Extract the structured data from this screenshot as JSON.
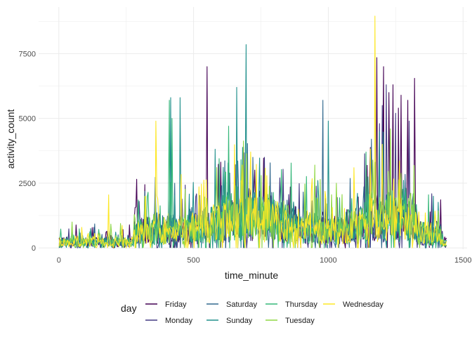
{
  "chart_data": {
    "type": "line",
    "title": "",
    "xlabel": "time_minute",
    "ylabel": "activity_count",
    "xlim": [
      -75,
      1515
    ],
    "ylim": [
      -50,
      9300
    ],
    "x_ticks": [
      0,
      500,
      1000,
      1500
    ],
    "x_tick_labels": [
      "0",
      "500",
      "1000",
      "1500"
    ],
    "y_ticks": [
      0,
      2500,
      5000,
      7500
    ],
    "y_tick_labels": [
      "0",
      "2500",
      "5000",
      "7500"
    ],
    "grid": true,
    "legend_title": "day",
    "legend_placement": "bottom",
    "x_range": [
      1,
      1440
    ],
    "series": [
      {
        "name": "Friday",
        "color": "#440154",
        "peaks": [
          [
            550,
            7000
          ],
          [
            1180,
            7350
          ],
          [
            1205,
            7000
          ],
          [
            1240,
            6300
          ],
          [
            1260,
            5400
          ],
          [
            1270,
            5900
          ],
          [
            1295,
            5700
          ],
          [
            1320,
            6550
          ],
          [
            1225,
            6000
          ]
        ]
      },
      {
        "name": "Monday",
        "color": "#443A83",
        "peaks": [
          [
            1200,
            5500
          ],
          [
            1215,
            6300
          ],
          [
            1250,
            5200
          ],
          [
            1300,
            4900
          ],
          [
            1190,
            4800
          ]
        ]
      },
      {
        "name": "Saturday",
        "color": "#31688E",
        "peaks": [
          [
            980,
            5700
          ],
          [
            720,
            3500
          ],
          [
            1160,
            4200
          ],
          [
            430,
            2500
          ]
        ]
      },
      {
        "name": "Sunday",
        "color": "#21908C",
        "peaks": [
          [
            415,
            5800
          ],
          [
            450,
            5800
          ],
          [
            695,
            7850
          ],
          [
            660,
            6200
          ],
          [
            1000,
            4900
          ],
          [
            1190,
            4500
          ]
        ]
      },
      {
        "name": "Thursday",
        "color": "#35B779",
        "peaks": [
          [
            410,
            5700
          ],
          [
            420,
            5000
          ],
          [
            630,
            4700
          ],
          [
            1140,
            3700
          ]
        ]
      },
      {
        "name": "Tuesday",
        "color": "#8FD744",
        "peaks": [
          [
            1230,
            4600
          ],
          [
            950,
            3200
          ],
          [
            1030,
            2500
          ]
        ]
      },
      {
        "name": "Wednesday",
        "color": "#FDE725",
        "peaks": [
          [
            1173,
            8950
          ],
          [
            360,
            4900
          ],
          [
            185,
            2050
          ],
          [
            680,
            3200
          ],
          [
            1095,
            3100
          ],
          [
            1200,
            4000
          ]
        ]
      }
    ]
  }
}
